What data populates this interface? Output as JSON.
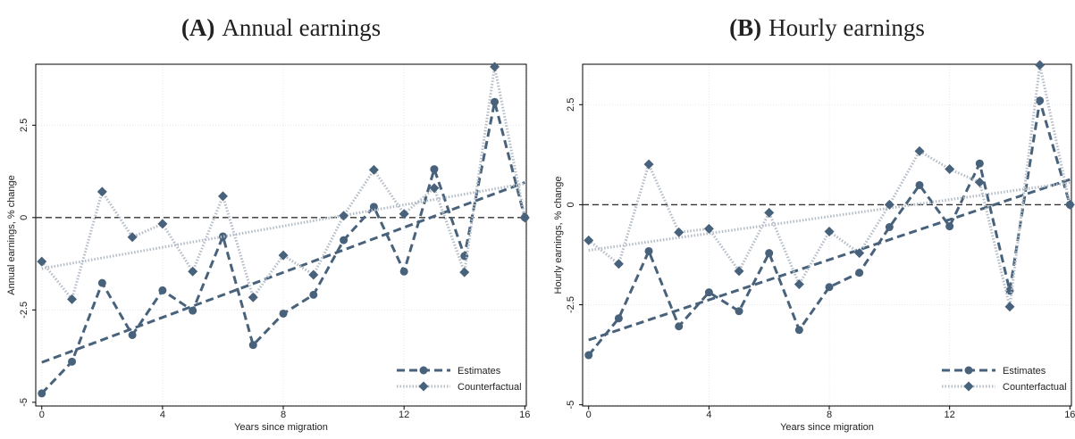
{
  "chart_data": [
    {
      "type": "line",
      "panel_label": "(A)",
      "title": "Annual earnings",
      "x_label": "Years since migration",
      "y_label": "Annual earnings, % change",
      "x": [
        0,
        1,
        2,
        3,
        4,
        5,
        6,
        7,
        8,
        9,
        10,
        11,
        12,
        13,
        14,
        15,
        16
      ],
      "xlim": [
        -0.2,
        16.05
      ],
      "xticks": [
        0,
        4,
        8,
        12,
        16
      ],
      "ylim": [
        -5.1,
        4.15
      ],
      "yticks": [
        -5,
        -2.5,
        0,
        2.5
      ],
      "grid": true,
      "reference_line": 0,
      "legend": "lower right",
      "series": [
        {
          "name": "Estimates",
          "color": "#48627b",
          "style": "dashed",
          "marker": "circle",
          "marker_color": "#48627b",
          "values": [
            -4.76,
            -3.9,
            -1.77,
            -3.18,
            -1.97,
            -2.52,
            -0.51,
            -3.45,
            -2.6,
            -2.09,
            -0.61,
            0.29,
            -1.46,
            1.31,
            -1.04,
            3.13,
            0
          ],
          "fit": [
            -3.92,
            0.95
          ]
        },
        {
          "name": "Counterfactual",
          "color": "#b3bcc7",
          "style": "dotted",
          "marker": "diamond",
          "marker_color": "#48627b",
          "values": [
            -1.19,
            -2.21,
            0.7,
            -0.53,
            -0.17,
            -1.46,
            0.58,
            -2.16,
            -1.02,
            -1.55,
            0.05,
            1.29,
            0.1,
            0.8,
            -1.48,
            4.08,
            0
          ],
          "fit": [
            -1.38,
            0.92
          ]
        }
      ]
    },
    {
      "type": "line",
      "panel_label": "(B)",
      "title": "Hourly earnings",
      "x_label": "Years since migration",
      "y_label": "Hourly earnings, % change",
      "x": [
        0,
        1,
        2,
        3,
        4,
        5,
        6,
        7,
        8,
        9,
        10,
        11,
        12,
        13,
        14,
        15,
        16
      ],
      "xlim": [
        -0.2,
        16.05
      ],
      "xticks": [
        0,
        4,
        8,
        12,
        16
      ],
      "ylim": [
        -5.03,
        3.51
      ],
      "yticks": [
        -5,
        -2.5,
        0,
        2.5
      ],
      "grid": true,
      "reference_line": 0,
      "legend": "lower right",
      "series": [
        {
          "name": "Estimates",
          "color": "#48627b",
          "style": "dashed",
          "marker": "circle",
          "marker_color": "#48627b",
          "values": [
            -3.76,
            -2.84,
            -1.16,
            -3.04,
            -2.19,
            -2.66,
            -1.21,
            -3.13,
            -2.06,
            -1.7,
            -0.56,
            0.49,
            -0.54,
            1.03,
            -2.15,
            2.6,
            0
          ],
          "fit": [
            -3.38,
            0.63
          ]
        },
        {
          "name": "Counterfactual",
          "color": "#b3bcc7",
          "style": "dotted",
          "marker": "diamond",
          "marker_color": "#48627b",
          "values": [
            -0.89,
            -1.48,
            1.01,
            -0.69,
            -0.6,
            -1.66,
            -0.2,
            -1.99,
            -0.67,
            -1.21,
            0,
            1.34,
            0.89,
            0.56,
            -2.55,
            3.49,
            0
          ],
          "fit": [
            -1.14,
            0.55
          ]
        }
      ]
    }
  ]
}
